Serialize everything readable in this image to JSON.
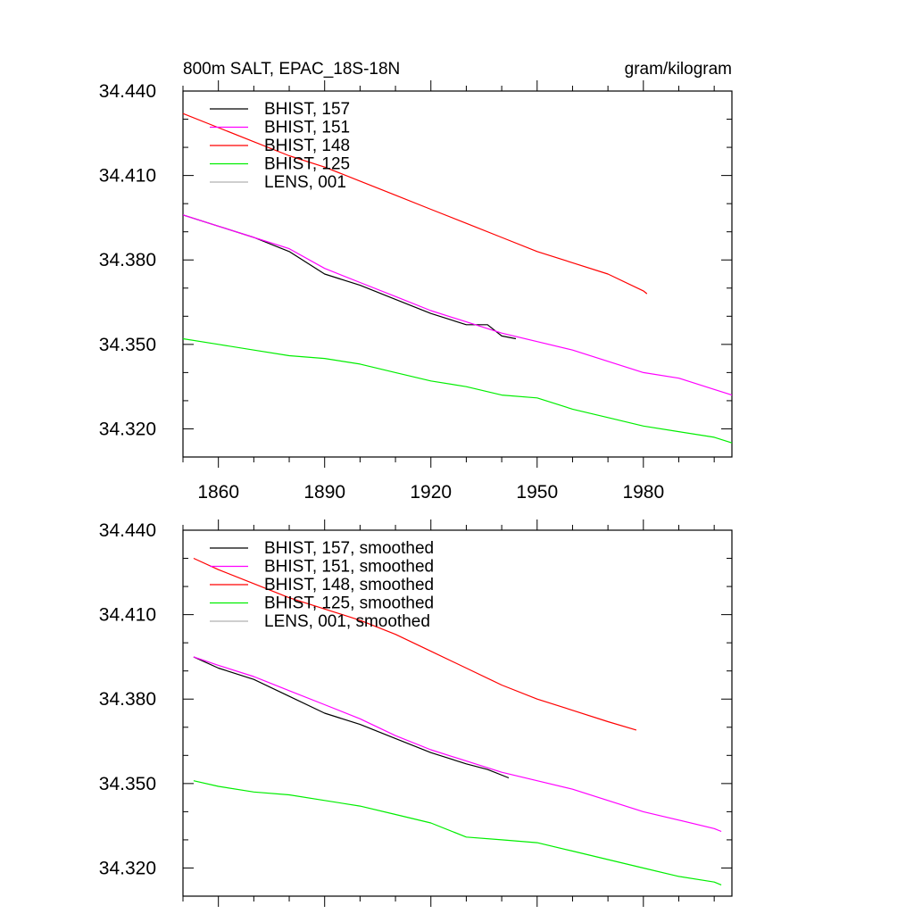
{
  "chart_data": [
    {
      "type": "line",
      "title": "800m SALT, EPAC_18S-18N",
      "units": "gram/kilogram",
      "xlim": [
        1850,
        2005
      ],
      "ylim": [
        34.31,
        34.44
      ],
      "yticks": [
        "34.440",
        "34.410",
        "34.380",
        "34.350",
        "34.320"
      ],
      "ytick_values": [
        34.44,
        34.41,
        34.38,
        34.35,
        34.32
      ],
      "xticks": [
        "1860",
        "1890",
        "1920",
        "1950",
        "1980"
      ],
      "xtick_values": [
        1860,
        1890,
        1920,
        1950,
        1980
      ],
      "legend_position": "top-left",
      "series": [
        {
          "name": "BHIST, 157",
          "color": "#000000",
          "x": [
            1850,
            1860,
            1870,
            1880,
            1890,
            1900,
            1910,
            1920,
            1930,
            1936,
            1940,
            1944
          ],
          "y": [
            34.396,
            34.392,
            34.388,
            34.383,
            34.375,
            34.371,
            34.366,
            34.361,
            34.357,
            34.357,
            34.353,
            34.352
          ]
        },
        {
          "name": "BHIST, 151",
          "color": "#ff00ff",
          "x": [
            1850,
            1860,
            1870,
            1880,
            1890,
            1900,
            1910,
            1920,
            1930,
            1940,
            1950,
            1960,
            1970,
            1980,
            1990,
            2000,
            2005
          ],
          "y": [
            34.396,
            34.392,
            34.388,
            34.384,
            34.377,
            34.372,
            34.367,
            34.362,
            34.358,
            34.354,
            34.351,
            34.348,
            34.344,
            34.34,
            34.338,
            34.334,
            34.332
          ]
        },
        {
          "name": "BHIST, 148",
          "color": "#ff0000",
          "x": [
            1850,
            1860,
            1870,
            1880,
            1890,
            1900,
            1910,
            1920,
            1930,
            1940,
            1950,
            1960,
            1970,
            1980,
            1981
          ],
          "y": [
            34.432,
            34.427,
            34.422,
            34.417,
            34.413,
            34.408,
            34.403,
            34.398,
            34.393,
            34.388,
            34.383,
            34.379,
            34.375,
            34.369,
            34.368
          ]
        },
        {
          "name": "BHIST, 125",
          "color": "#00ee00",
          "x": [
            1850,
            1860,
            1870,
            1880,
            1890,
            1900,
            1910,
            1920,
            1930,
            1940,
            1950,
            1960,
            1970,
            1980,
            1990,
            2000,
            2005
          ],
          "y": [
            34.352,
            34.35,
            34.348,
            34.346,
            34.345,
            34.343,
            34.34,
            34.337,
            34.335,
            34.332,
            34.331,
            34.327,
            34.324,
            34.321,
            34.319,
            34.317,
            34.315
          ]
        },
        {
          "name": "LENS, 001",
          "color": "#b0b0b0",
          "x": [],
          "y": []
        }
      ]
    },
    {
      "type": "line",
      "title": "",
      "units": "",
      "xlim": [
        1850,
        2005
      ],
      "ylim": [
        34.31,
        34.44
      ],
      "yticks": [
        "34.440",
        "34.410",
        "34.380",
        "34.350",
        "34.320"
      ],
      "ytick_values": [
        34.44,
        34.41,
        34.38,
        34.35,
        34.32
      ],
      "xticks": [],
      "xtick_values": [
        1860,
        1890,
        1920,
        1950,
        1980
      ],
      "legend_position": "top-left",
      "series": [
        {
          "name": "BHIST, 157, smoothed",
          "color": "#000000",
          "x": [
            1853,
            1860,
            1870,
            1880,
            1890,
            1900,
            1910,
            1920,
            1930,
            1936,
            1942
          ],
          "y": [
            34.395,
            34.391,
            34.387,
            34.381,
            34.375,
            34.371,
            34.366,
            34.361,
            34.357,
            34.355,
            34.352
          ]
        },
        {
          "name": "BHIST, 151, smoothed",
          "color": "#ff00ff",
          "x": [
            1853,
            1860,
            1870,
            1880,
            1890,
            1900,
            1910,
            1920,
            1930,
            1940,
            1950,
            1960,
            1970,
            1980,
            1990,
            2000,
            2002
          ],
          "y": [
            34.395,
            34.392,
            34.388,
            34.383,
            34.378,
            34.373,
            34.367,
            34.362,
            34.358,
            34.354,
            34.351,
            34.348,
            34.344,
            34.34,
            34.337,
            34.334,
            34.333
          ]
        },
        {
          "name": "BHIST, 148, smoothed",
          "color": "#ff0000",
          "x": [
            1853,
            1860,
            1870,
            1880,
            1890,
            1900,
            1910,
            1920,
            1930,
            1940,
            1950,
            1960,
            1970,
            1978
          ],
          "y": [
            34.43,
            34.426,
            34.421,
            34.416,
            34.412,
            34.408,
            34.403,
            34.397,
            34.391,
            34.385,
            34.38,
            34.376,
            34.372,
            34.369
          ]
        },
        {
          "name": "BHIST, 125, smoothed",
          "color": "#00ee00",
          "x": [
            1853,
            1860,
            1870,
            1880,
            1890,
            1900,
            1910,
            1920,
            1930,
            1940,
            1950,
            1960,
            1970,
            1980,
            1990,
            2000,
            2002
          ],
          "y": [
            34.351,
            34.349,
            34.347,
            34.346,
            34.344,
            34.342,
            34.339,
            34.336,
            34.331,
            34.33,
            34.329,
            34.326,
            34.323,
            34.32,
            34.317,
            34.315,
            34.314
          ]
        },
        {
          "name": "LENS, 001, smoothed",
          "color": "#b0b0b0",
          "x": [],
          "y": []
        }
      ]
    }
  ]
}
